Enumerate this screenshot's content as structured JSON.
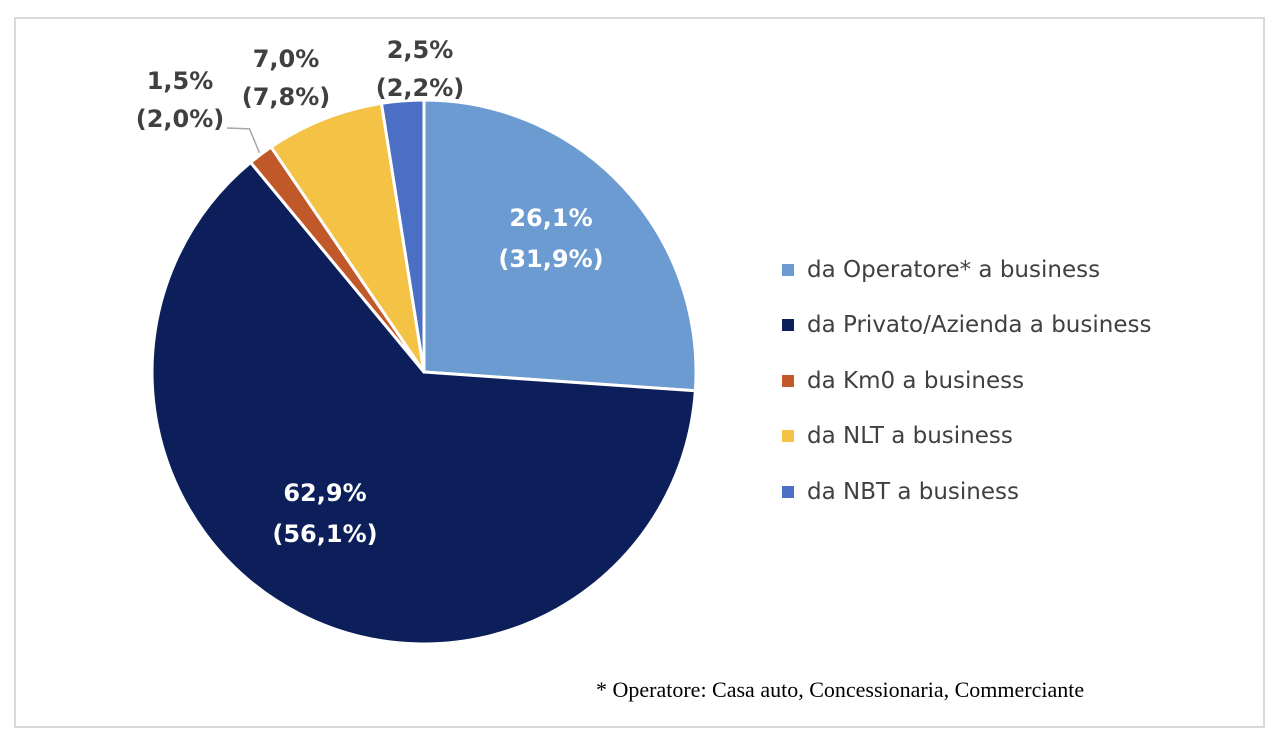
{
  "chart_data": {
    "type": "pie",
    "series": [
      {
        "slices": [
          {
            "label": "da Operatore* a business",
            "value": 26.1,
            "value_text": "26,1%",
            "paren_value": 31.9,
            "paren_text": "(31,9%)",
            "color": "#6b9bd1",
            "label_color": "#ffffff"
          },
          {
            "label": "da Privato/Azienda a business",
            "value": 62.9,
            "value_text": "62,9%",
            "paren_value": 56.1,
            "paren_text": "(56,1%)",
            "color": "#0c1f5b",
            "label_color": "#ffffff"
          },
          {
            "label": "da Km0 a business",
            "value": 1.5,
            "value_text": "1,5%",
            "paren_value": 2.0,
            "paren_text": "(2,0%)",
            "color": "#c0582a",
            "label_color": "#404040"
          },
          {
            "label": "da NLT a business",
            "value": 7.0,
            "value_text": "7,0%",
            "paren_value": 7.8,
            "paren_text": "(7,8%)",
            "color": "#f4c244",
            "label_color": "#404040"
          },
          {
            "label": "da NBT a business",
            "value": 2.5,
            "value_text": "2,5%",
            "paren_value": 2.2,
            "paren_text": "(2,2%)",
            "color": "#4a6fc4",
            "label_color": "#404040"
          }
        ]
      }
    ],
    "legend_position": "right",
    "footnote": "* Operatore: Casa auto, Concessionaria, Commerciante"
  }
}
